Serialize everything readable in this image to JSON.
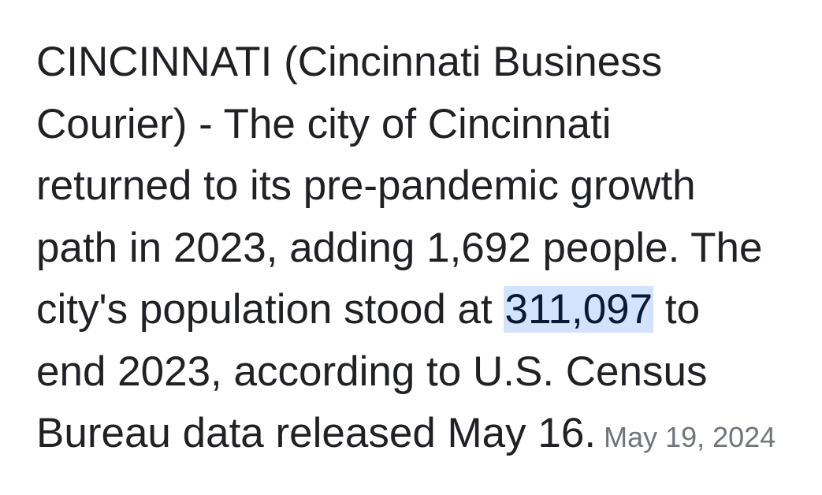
{
  "snippet": {
    "lines": [
      {
        "text": "CINCINNATI (Cincinnati Business"
      },
      {
        "text": "Courier) - The city of Cincinnati"
      },
      {
        "text": "returned to its pre-pandemic growth"
      },
      {
        "text": "path in 2023, adding 1,692 people. The"
      },
      {
        "before": "city's population stood at ",
        "highlight": "311,097",
        "after": " to"
      },
      {
        "text": "end 2023, according to U.S. Census"
      },
      {
        "text": "Bureau data released May 16."
      }
    ],
    "date": "May 19, 2024"
  }
}
